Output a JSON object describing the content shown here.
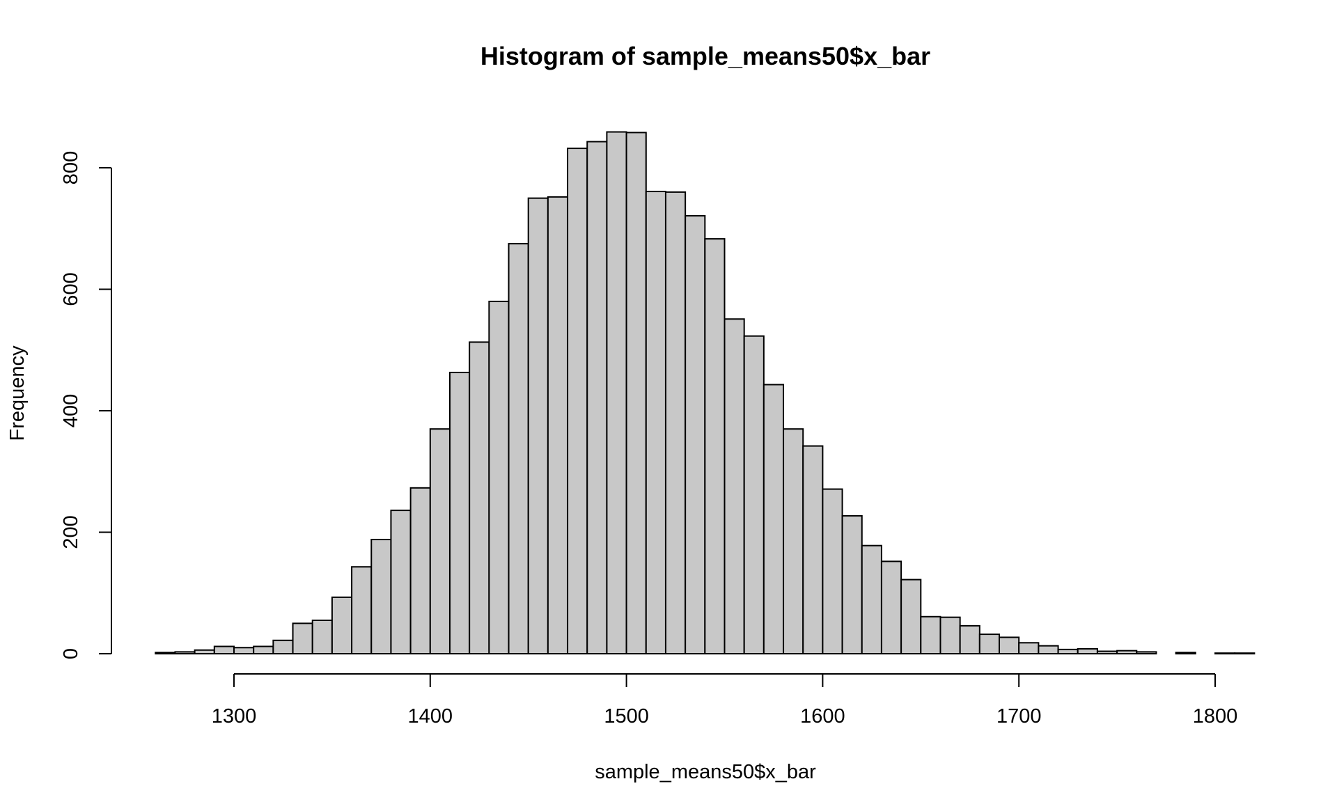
{
  "chart_data": {
    "type": "bar",
    "title": "Histogram of sample_means50$x_bar",
    "xlabel": "sample_means50$x_bar",
    "ylabel": "Frequency",
    "bin_width": 10,
    "bin_start": 1260,
    "xlim": [
      1260,
      1820
    ],
    "ylim": [
      0,
      860
    ],
    "x_ticks": [
      1300,
      1400,
      1500,
      1600,
      1700,
      1800
    ],
    "y_ticks": [
      0,
      200,
      400,
      600,
      800
    ],
    "bar_color": "#c8c8c8",
    "edge_color": "#000000",
    "counts": [
      2,
      3,
      6,
      12,
      10,
      12,
      22,
      50,
      55,
      93,
      143,
      188,
      236,
      273,
      370,
      463,
      513,
      580,
      675,
      750,
      752,
      832,
      843,
      859,
      858,
      761,
      760,
      721,
      683,
      551,
      523,
      443,
      370,
      342,
      271,
      227,
      178,
      152,
      122,
      61,
      60,
      46,
      32,
      27,
      18,
      13,
      7,
      8,
      4,
      5,
      3,
      0,
      2,
      0,
      1,
      1
    ]
  }
}
